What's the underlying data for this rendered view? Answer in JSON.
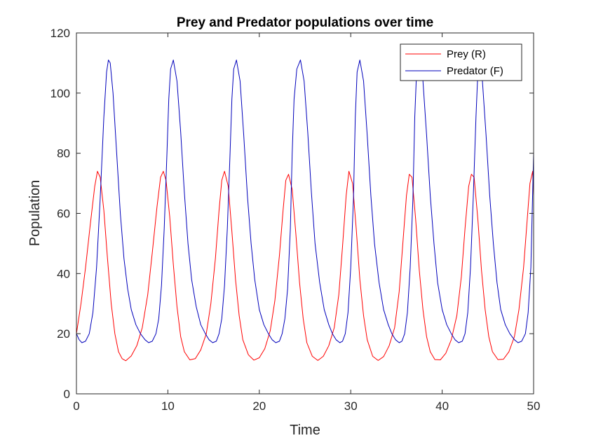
{
  "chart_data": {
    "type": "line",
    "title": "Prey and Predator populations over time",
    "xlabel": "Time",
    "ylabel": "Population",
    "xlim": [
      0,
      50
    ],
    "ylim": [
      0,
      120
    ],
    "xticks": [
      "0",
      "10",
      "20",
      "30",
      "40",
      "50"
    ],
    "yticks": [
      "0",
      "20",
      "40",
      "60",
      "80",
      "100",
      "120"
    ],
    "grid": false,
    "legend_position": "top-right",
    "series": [
      {
        "name": "Prey (R)",
        "color": "#ff0000",
        "x": [
          0,
          0.5,
          1.0,
          1.5,
          2.0,
          2.3,
          2.6,
          3.0,
          3.4,
          3.8,
          4.2,
          4.6,
          5.0,
          5.4,
          6.0,
          6.6,
          7.2,
          7.8,
          8.3,
          8.8,
          9.2,
          9.5,
          9.8,
          10.2,
          10.6,
          11.0,
          11.4,
          11.8,
          12.4,
          13.0,
          13.6,
          14.2,
          14.7,
          15.2,
          15.6,
          15.9,
          16.2,
          16.6,
          17.0,
          17.4,
          17.8,
          18.2,
          18.8,
          19.4,
          20.0,
          20.6,
          21.2,
          21.7,
          22.2,
          22.6,
          22.9,
          23.2,
          23.6,
          24.0,
          24.4,
          24.8,
          25.2,
          25.8,
          26.4,
          27.0,
          27.6,
          28.2,
          28.7,
          29.1,
          29.5,
          29.8,
          30.2,
          30.6,
          31.0,
          31.4,
          31.8,
          32.4,
          33.0,
          33.6,
          34.2,
          34.8,
          35.3,
          35.7,
          36.1,
          36.4,
          36.7,
          37.1,
          37.5,
          37.9,
          38.3,
          38.7,
          39.2,
          39.8,
          40.4,
          41.0,
          41.6,
          42.1,
          42.5,
          42.9,
          43.2,
          43.5,
          43.9,
          44.3,
          44.7,
          45.1,
          45.5,
          46.1,
          46.7,
          47.3,
          47.9,
          48.4,
          48.9,
          49.3,
          49.6,
          49.9,
          50.0
        ],
        "y": [
          20,
          30,
          42,
          56,
          69,
          74,
          72,
          61,
          45,
          30,
          20,
          14,
          11.7,
          11,
          12.6,
          16,
          22,
          33,
          47,
          62,
          72,
          74,
          71,
          59,
          43,
          29,
          19,
          14,
          11.3,
          11.7,
          14.6,
          20,
          30,
          45,
          61,
          71,
          74,
          69,
          54,
          38,
          26,
          18,
          13,
          11.2,
          12,
          15,
          21,
          31,
          46,
          61,
          71,
          73,
          68,
          53,
          37,
          25,
          17,
          12.5,
          11.1,
          12.5,
          16,
          22,
          33,
          49,
          66,
          74,
          70,
          55,
          38,
          26,
          18,
          12.5,
          11.1,
          12.4,
          16,
          22,
          34,
          50,
          66,
          73,
          72,
          58,
          41,
          28,
          19,
          14,
          11.4,
          11.3,
          13.5,
          18,
          26,
          39,
          55,
          69,
          73,
          72,
          58,
          41,
          28,
          19,
          14,
          11.4,
          11.5,
          14,
          19,
          28,
          42,
          58,
          70,
          74,
          66
        ]
      },
      {
        "name": "Predator (F)",
        "color": "#0000bb",
        "x": [
          0,
          0.3,
          0.6,
          1.0,
          1.4,
          1.8,
          2.2,
          2.6,
          3.0,
          3.3,
          3.5,
          3.7,
          4.0,
          4.4,
          4.8,
          5.2,
          5.6,
          6.0,
          6.5,
          7.0,
          7.5,
          7.9,
          8.3,
          8.7,
          9.0,
          9.3,
          9.6,
          9.9,
          10.1,
          10.3,
          10.6,
          11.0,
          11.4,
          11.8,
          12.2,
          12.6,
          13.1,
          13.6,
          14.1,
          14.5,
          14.9,
          15.3,
          15.6,
          15.9,
          16.2,
          16.5,
          16.8,
          17.0,
          17.2,
          17.5,
          17.9,
          18.3,
          18.7,
          19.1,
          19.5,
          20.0,
          20.5,
          21.0,
          21.4,
          21.8,
          22.2,
          22.5,
          22.8,
          23.1,
          23.4,
          23.6,
          23.8,
          24.1,
          24.5,
          24.9,
          25.3,
          25.7,
          26.1,
          26.6,
          27.1,
          27.6,
          28.0,
          28.4,
          28.8,
          29.1,
          29.4,
          29.7,
          30.0,
          30.3,
          30.5,
          30.7,
          31.0,
          31.4,
          31.8,
          32.2,
          32.6,
          33.1,
          33.6,
          34.1,
          34.5,
          34.9,
          35.3,
          35.6,
          35.9,
          36.2,
          36.5,
          36.8,
          37.0,
          37.2,
          37.5,
          37.9,
          38.3,
          38.7,
          39.1,
          39.5,
          40.0,
          40.5,
          41.0,
          41.4,
          41.8,
          42.2,
          42.5,
          42.8,
          43.1,
          43.4,
          43.7,
          43.9,
          44.1,
          44.4,
          44.8,
          45.2,
          45.6,
          46.0,
          46.4,
          46.9,
          47.4,
          47.9,
          48.3,
          48.7,
          49.1,
          49.4,
          49.7,
          50.0
        ],
        "y": [
          20,
          18,
          17,
          17.5,
          20,
          27,
          42,
          65,
          92,
          107,
          111,
          110,
          100,
          80,
          60,
          45,
          35,
          28,
          23,
          20,
          18,
          17,
          17.5,
          20,
          25,
          36,
          55,
          80,
          98,
          108,
          111,
          104,
          87,
          67,
          50,
          38,
          29,
          23,
          20,
          18,
          17,
          17.5,
          20,
          25,
          36,
          55,
          80,
          98,
          108,
          111,
          104,
          86,
          66,
          50,
          38,
          28,
          23,
          20,
          18,
          17,
          17.5,
          20,
          25,
          35,
          55,
          80,
          98,
          108,
          111,
          104,
          87,
          67,
          50,
          37,
          28,
          23,
          20,
          18,
          17,
          17.5,
          20,
          27,
          42,
          65,
          92,
          107,
          111,
          104,
          86,
          66,
          50,
          37,
          28,
          23,
          20,
          18,
          17,
          17.5,
          20,
          27,
          42,
          65,
          92,
          107,
          111,
          104,
          86,
          66,
          50,
          37,
          28,
          23,
          20,
          18,
          17,
          17.5,
          20,
          27,
          42,
          65,
          92,
          107,
          111,
          104,
          86,
          66,
          50,
          37,
          28,
          23,
          20,
          18,
          17,
          17.5,
          20,
          27,
          42,
          80
        ]
      }
    ]
  }
}
